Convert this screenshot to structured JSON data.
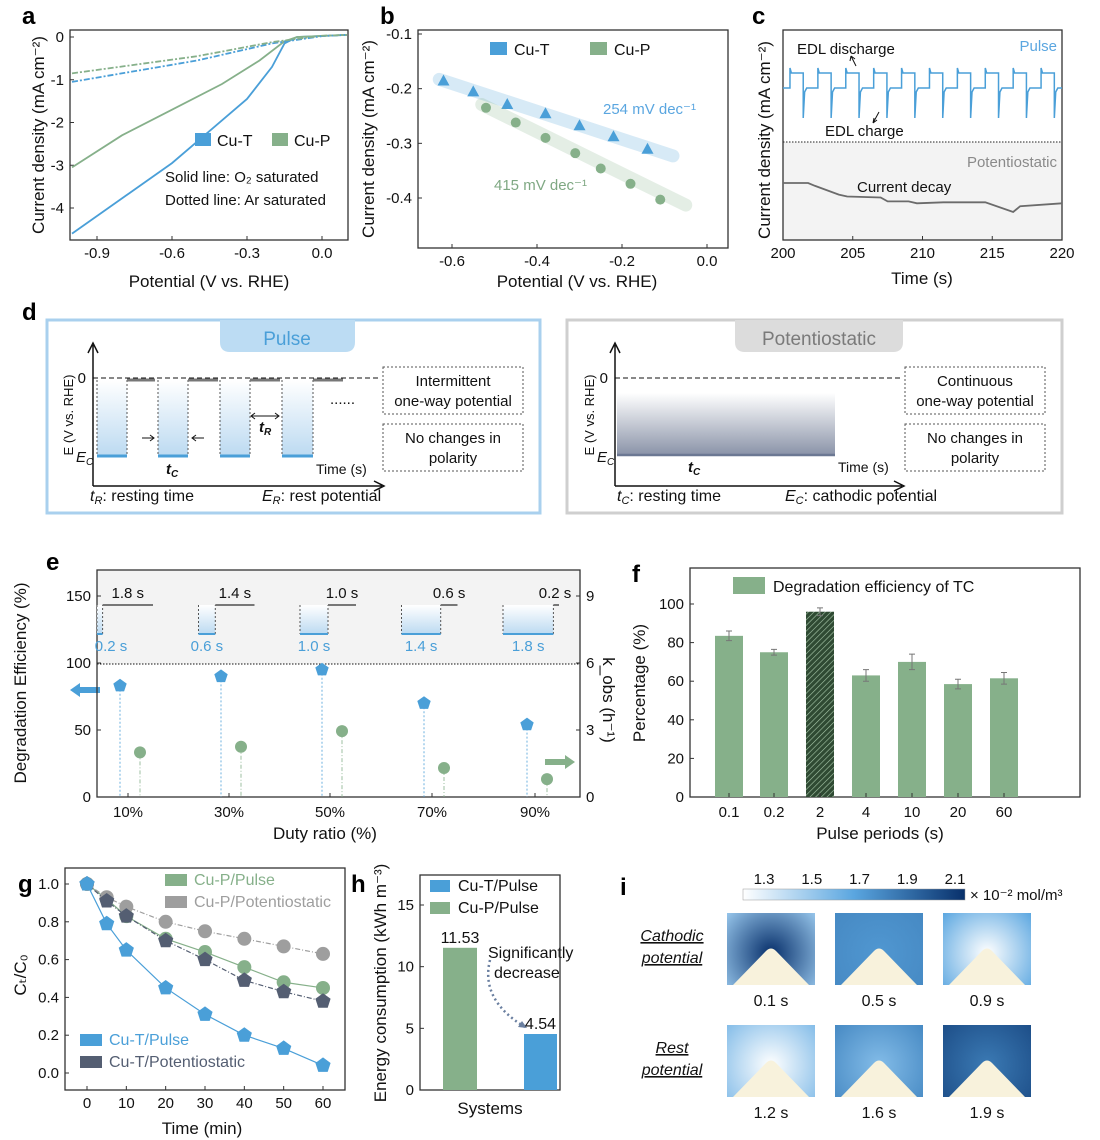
{
  "panel_labels": {
    "a": "a",
    "b": "b",
    "c": "c",
    "d": "d",
    "e": "e",
    "f": "f",
    "g": "g",
    "h": "h",
    "i": "i"
  },
  "colors": {
    "cu_t": "#4a9fd8",
    "cu_p": "#86b08a",
    "cu_t_pot": "#545e72",
    "cu_p_pot": "#9e9e9e",
    "pot_trace": "#6b6b6b"
  },
  "chart_data": [
    {
      "panel": "a",
      "type": "line",
      "xlabel": "Potential (V vs. RHE)",
      "ylabel": "Current density (mA cm⁻²)",
      "xlim": [
        -1.0,
        0.1
      ],
      "ylim": [
        -4.75,
        0.15
      ],
      "xticks": [
        "-0.9",
        "-0.6",
        "-0.3",
        "0.0"
      ],
      "xtick_values": [
        -0.9,
        -0.6,
        -0.3,
        0.0
      ],
      "yticks": [
        "0",
        "-1",
        "-2",
        "-3",
        "-4"
      ],
      "ytick_values": [
        0,
        -1,
        -2,
        -3,
        -4
      ],
      "legend": [
        "Cu-T",
        "Cu-P"
      ],
      "annotations": [
        "Solid line: O₂ saturated",
        "Dotted line: Ar saturated"
      ],
      "series": [
        {
          "name": "Cu-T O2 saturated",
          "color_key": "cu_t",
          "style": "solid",
          "points": [
            [
              -1.0,
              -4.6
            ],
            [
              -0.6,
              -2.95
            ],
            [
              -0.3,
              -1.45
            ],
            [
              -0.2,
              -0.7
            ],
            [
              -0.15,
              -0.15
            ],
            [
              -0.1,
              0.0
            ],
            [
              0.1,
              0.05
            ]
          ]
        },
        {
          "name": "Cu-P O2 saturated",
          "color_key": "cu_p",
          "style": "solid",
          "points": [
            [
              -1.0,
              -3.05
            ],
            [
              -0.8,
              -2.3
            ],
            [
              -0.6,
              -1.7
            ],
            [
              -0.4,
              -1.1
            ],
            [
              -0.25,
              -0.55
            ],
            [
              -0.15,
              -0.1
            ],
            [
              -0.1,
              0.0
            ],
            [
              0.1,
              0.05
            ]
          ]
        },
        {
          "name": "Cu-T Ar saturated",
          "color_key": "cu_t",
          "style": "dashdot",
          "points": [
            [
              -1.0,
              -1.05
            ],
            [
              -0.5,
              -0.55
            ],
            [
              -0.2,
              -0.15
            ],
            [
              0.0,
              0.02
            ],
            [
              0.1,
              0.05
            ]
          ]
        },
        {
          "name": "Cu-P Ar saturated",
          "color_key": "cu_p",
          "style": "dashdot",
          "points": [
            [
              -1.0,
              -0.85
            ],
            [
              -0.5,
              -0.45
            ],
            [
              -0.2,
              -0.12
            ],
            [
              0.0,
              0.03
            ],
            [
              0.1,
              0.05
            ]
          ]
        }
      ]
    },
    {
      "panel": "b",
      "type": "scatter",
      "xlabel": "Potential (V vs. RHE)",
      "ylabel": "Current density (mA cm⁻²)",
      "xlim": [
        -0.68,
        0.05
      ],
      "ylim": [
        -0.49,
        -0.093
      ],
      "xticks": [
        "-0.6",
        "-0.4",
        "-0.2",
        "0.0"
      ],
      "xtick_values": [
        -0.6,
        -0.4,
        -0.2,
        0.0
      ],
      "yticks": [
        "-0.1",
        "-0.2",
        "-0.3",
        "-0.4"
      ],
      "ytick_values": [
        -0.1,
        -0.2,
        -0.3,
        -0.4
      ],
      "legend": [
        "Cu-T",
        "Cu-P"
      ],
      "series": [
        {
          "name": "Cu-T",
          "color_key": "cu_t",
          "marker": "triangle",
          "slope_label": "254 mV dec⁻¹",
          "x": [
            -0.62,
            -0.55,
            -0.47,
            -0.38,
            -0.3,
            -0.22,
            -0.14
          ],
          "y": [
            -0.185,
            -0.205,
            -0.228,
            -0.245,
            -0.267,
            -0.287,
            -0.31
          ],
          "fit": [
            [
              -0.63,
              -0.183
            ],
            [
              -0.08,
              -0.323
            ]
          ]
        },
        {
          "name": "Cu-P",
          "color_key": "cu_p",
          "marker": "circle",
          "slope_label": "415 mV dec⁻¹",
          "x": [
            -0.52,
            -0.45,
            -0.38,
            -0.31,
            -0.25,
            -0.18,
            -0.11
          ],
          "y": [
            -0.235,
            -0.262,
            -0.29,
            -0.318,
            -0.346,
            -0.374,
            -0.403
          ],
          "fit": [
            [
              -0.53,
              -0.229
            ],
            [
              -0.05,
              -0.413
            ]
          ]
        }
      ]
    },
    {
      "panel": "c",
      "type": "line",
      "xlabel": "Time (s)",
      "ylabel": "Current density (mA cm⁻²)",
      "xlim": [
        200,
        220
      ],
      "xticks": [
        "200",
        "205",
        "210",
        "215",
        "220"
      ],
      "xtick_values": [
        200,
        205,
        210,
        215,
        220
      ],
      "pulse": {
        "label": "Pulse",
        "period_s": 2,
        "cycles": 10,
        "discharge_label": "EDL discharge",
        "charge_label": "EDL charge"
      },
      "potentiostatic": {
        "label": "Potentiostatic",
        "decay_label": "Current decay",
        "t": [
          200,
          201.8,
          202.3,
          204,
          204.6,
          207,
          207.5,
          209,
          209.6,
          211.5,
          214.5,
          216.5,
          217,
          220
        ],
        "relative_current": [
          1.0,
          1.0,
          0.97,
          0.88,
          0.86,
          0.85,
          0.81,
          0.81,
          0.79,
          0.8,
          0.8,
          0.7,
          0.76,
          0.79
        ]
      }
    },
    {
      "panel": "e",
      "type": "scatter",
      "xlabel": "Duty ratio (%)",
      "ylabel": "Degradation Efficiency (%)",
      "y2label": "k_obs (h⁻¹)",
      "categories": [
        "10%",
        "30%",
        "50%",
        "70%",
        "90%"
      ],
      "ylim": [
        0,
        170
      ],
      "yticks": [
        "0",
        "50",
        "100",
        "150"
      ],
      "ytick_values": [
        0,
        50,
        100,
        150
      ],
      "y2lim": [
        0,
        10.2
      ],
      "y2ticks": [
        "0",
        "3",
        "6",
        "9"
      ],
      "y2tick_values": [
        0,
        3,
        6,
        9
      ],
      "series": [
        {
          "name": "Degradation efficiency",
          "axis": "left",
          "color_key": "cu_t",
          "marker": "pentagon",
          "values": [
            83,
            90,
            95,
            70,
            54
          ]
        },
        {
          "name": "k_obs",
          "axis": "right",
          "color_key": "cu_p",
          "marker": "circle",
          "values": [
            2.0,
            2.25,
            2.95,
            1.3,
            0.8
          ]
        }
      ],
      "inset": {
        "low_durations": [
          "0.2 s",
          "0.6 s",
          "1.0 s",
          "1.4 s",
          "1.8 s"
        ],
        "low_values": [
          0.2,
          0.6,
          1.0,
          1.4,
          1.8
        ],
        "high_durations": [
          "1.8 s",
          "1.4 s",
          "1.0 s",
          "0.6 s",
          "0.2 s"
        ],
        "high_values": [
          1.8,
          1.4,
          1.0,
          0.6,
          0.2
        ]
      }
    },
    {
      "panel": "f",
      "type": "bar",
      "xlabel": "Pulse periods (s)",
      "ylabel": "Percentage (%)",
      "legend": [
        "Degradation efficiency of TC"
      ],
      "categories": [
        "0.1",
        "0.2",
        "2",
        "4",
        "10",
        "20",
        "60"
      ],
      "values": [
        83.5,
        75,
        96,
        63,
        70,
        58.5,
        61.5
      ],
      "errors": [
        2.5,
        1.5,
        2,
        3,
        4,
        2.5,
        3
      ],
      "highlighted": "2",
      "ylim": [
        0,
        118
      ],
      "yticks": [
        "0",
        "20",
        "40",
        "60",
        "80",
        "100"
      ],
      "ytick_values": [
        0,
        20,
        40,
        60,
        80,
        100
      ]
    },
    {
      "panel": "g",
      "type": "line",
      "xlabel": "Time (min)",
      "ylabel": "Cₜ/C₀",
      "xlim": [
        -7,
        65
      ],
      "ylim": [
        -0.09,
        1.08
      ],
      "xticks": [
        "0",
        "10",
        "20",
        "30",
        "40",
        "50",
        "60"
      ],
      "xtick_values": [
        0,
        10,
        20,
        30,
        40,
        50,
        60
      ],
      "yticks": [
        "0.0",
        "0.2",
        "0.4",
        "0.6",
        "0.8",
        "1.0"
      ],
      "ytick_values": [
        0,
        0.2,
        0.4,
        0.6,
        0.8,
        1.0
      ],
      "x": [
        0,
        5,
        10,
        20,
        30,
        40,
        50,
        60
      ],
      "series": [
        {
          "name": "Cu-P/Pulse",
          "color_key": "cu_p",
          "marker": "circle",
          "values": [
            1,
            0.92,
            0.83,
            0.71,
            0.64,
            0.56,
            0.48,
            0.45
          ]
        },
        {
          "name": "Cu-P/Potentiostatic",
          "color_key": "cu_p_pot",
          "marker": "circle",
          "values": [
            1,
            0.93,
            0.88,
            0.8,
            0.75,
            0.71,
            0.67,
            0.63
          ]
        },
        {
          "name": "Cu-T/Potentiostatic",
          "color_key": "cu_t_pot",
          "marker": "pentagon",
          "values": [
            1,
            0.91,
            0.83,
            0.7,
            0.6,
            0.49,
            0.43,
            0.38
          ]
        },
        {
          "name": "Cu-T/Pulse",
          "color_key": "cu_t",
          "marker": "pentagon",
          "values": [
            1,
            0.79,
            0.65,
            0.45,
            0.31,
            0.2,
            0.13,
            0.04
          ]
        }
      ]
    },
    {
      "panel": "h",
      "type": "bar",
      "xlabel": "Systems",
      "ylabel": "Energy consumption (kWh m⁻³)",
      "legend": [
        "Cu-T/Pulse",
        "Cu-P/Pulse"
      ],
      "categories": [
        "Cu-P/Pulse",
        "Cu-T/Pulse"
      ],
      "values": [
        11.53,
        4.54
      ],
      "value_labels": [
        "11.53",
        "4.54"
      ],
      "ylim": [
        0,
        17.5
      ],
      "yticks": [
        "0",
        "5",
        "10",
        "15"
      ],
      "ytick_values": [
        0,
        5,
        10,
        15
      ],
      "annotation": [
        "Significantly",
        "decrease"
      ]
    },
    {
      "panel": "i",
      "type": "heatmap",
      "colorbar": {
        "ticks": [
          "1.3",
          "1.5",
          "1.7",
          "1.9",
          "2.1"
        ],
        "tick_values": [
          1.3,
          1.5,
          1.7,
          1.9,
          2.1
        ],
        "unit": "× 10⁻² mol/m³"
      },
      "rows": [
        {
          "label": [
            "Cathodic",
            "potential"
          ],
          "tiles": [
            {
              "time": "0.1 s",
              "apex": 2.1,
              "edge": 1.55
            },
            {
              "time": "0.5 s",
              "apex": 1.75,
              "edge": 1.8
            },
            {
              "time": "0.9 s",
              "apex": 1.3,
              "edge": 1.7
            }
          ]
        },
        {
          "label": [
            "Rest",
            "potential"
          ],
          "tiles": [
            {
              "time": "1.2 s",
              "apex": 1.3,
              "edge": 1.6
            },
            {
              "time": "1.6 s",
              "apex": 1.6,
              "edge": 1.8
            },
            {
              "time": "1.9 s",
              "apex": 1.85,
              "edge": 2.0
            }
          ]
        }
      ]
    }
  ],
  "diagram_d": {
    "pulse": {
      "title": "Pulse",
      "yaxis": "E (V vs. RHE)",
      "zero": "0",
      "ec": {
        "sym": "E",
        "sub": "C"
      },
      "tc": {
        "sym": "t",
        "sub": "C"
      },
      "tr": {
        "sym": "t",
        "sub": "R"
      },
      "time": "Time (s)",
      "ellipsis": "......",
      "box1": [
        "Intermittent",
        "one-way potential"
      ],
      "box2": [
        "No changes in",
        "polarity"
      ],
      "footer1": {
        "sym": "t",
        "sub": "R",
        "rest": ": resting time"
      },
      "footer2": {
        "sym": "E",
        "sub": "R",
        "rest": ": rest potential"
      }
    },
    "potentiostatic": {
      "title": "Potentiostatic",
      "yaxis": "E (V vs. RHE)",
      "zero": "0",
      "ec": {
        "sym": "E",
        "sub": "C"
      },
      "tc": {
        "sym": "t",
        "sub": "C"
      },
      "time": "Time (s)",
      "box1": [
        "Continuous",
        "one-way potential"
      ],
      "box2": [
        "No changes in",
        "polarity"
      ],
      "footer1": {
        "sym": "t",
        "sub": "C",
        "rest": ": resting time"
      },
      "footer2": {
        "sym": "E",
        "sub": "C",
        "rest": ": cathodic potential"
      }
    }
  }
}
